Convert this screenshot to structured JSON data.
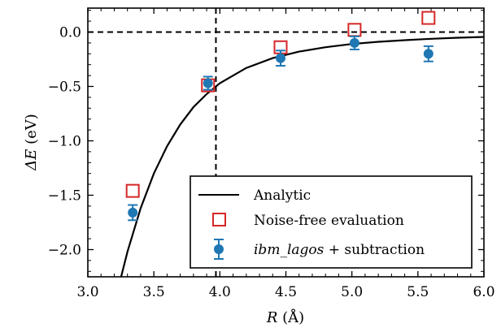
{
  "chart_data": {
    "type": "scatter",
    "xlabel_var": "R",
    "xlabel_unit": "(Å)",
    "ylabel_var": "ΔE",
    "ylabel_unit": "(eV)",
    "xlim": [
      3.0,
      6.0
    ],
    "ylim": [
      -2.25,
      0.22
    ],
    "x_ticks": [
      3.0,
      3.5,
      4.0,
      4.5,
      5.0,
      5.5,
      6.0
    ],
    "x_tick_labels": [
      "3.0",
      "3.5",
      "4.0",
      "4.5",
      "5.0",
      "5.5",
      "6.0"
    ],
    "y_ticks": [
      0.0,
      -0.5,
      -1.0,
      -1.5,
      -2.0
    ],
    "y_tick_labels": [
      "0.0",
      "−0.5",
      "−1.0",
      "−1.5",
      "−2.0"
    ],
    "reference_lines": {
      "y": 0.0,
      "x": 3.97
    },
    "grid": false,
    "legend_position": "lower-right",
    "series": [
      {
        "name": "Analytic",
        "kind": "line",
        "color": "#000000",
        "x": [
          3.25,
          3.3,
          3.4,
          3.5,
          3.6,
          3.7,
          3.8,
          3.9,
          4.0,
          4.2,
          4.4,
          4.6,
          4.8,
          5.0,
          5.2,
          5.4,
          5.6,
          5.8,
          6.0
        ],
        "y": [
          -2.26,
          -2.02,
          -1.62,
          -1.3,
          -1.05,
          -0.85,
          -0.69,
          -0.57,
          -0.47,
          -0.33,
          -0.24,
          -0.18,
          -0.14,
          -0.11,
          -0.09,
          -0.075,
          -0.062,
          -0.052,
          -0.045
        ]
      },
      {
        "name": "Noise-free evaluation",
        "kind": "marker-square-open",
        "color": "#d62728",
        "x": [
          3.34,
          3.91,
          4.46,
          5.02,
          5.58
        ],
        "y": [
          -1.46,
          -0.49,
          -0.14,
          0.02,
          0.13
        ]
      },
      {
        "name_italic": "ibm_lagos",
        "name_rest": " + subtraction",
        "kind": "marker-circle-errorbar",
        "color": "#1f77b4",
        "x": [
          3.34,
          3.91,
          4.46,
          5.02,
          5.58
        ],
        "y": [
          -1.66,
          -0.47,
          -0.24,
          -0.1,
          -0.2
        ],
        "yerr": [
          0.07,
          0.06,
          0.07,
          0.06,
          0.07
        ]
      }
    ]
  }
}
